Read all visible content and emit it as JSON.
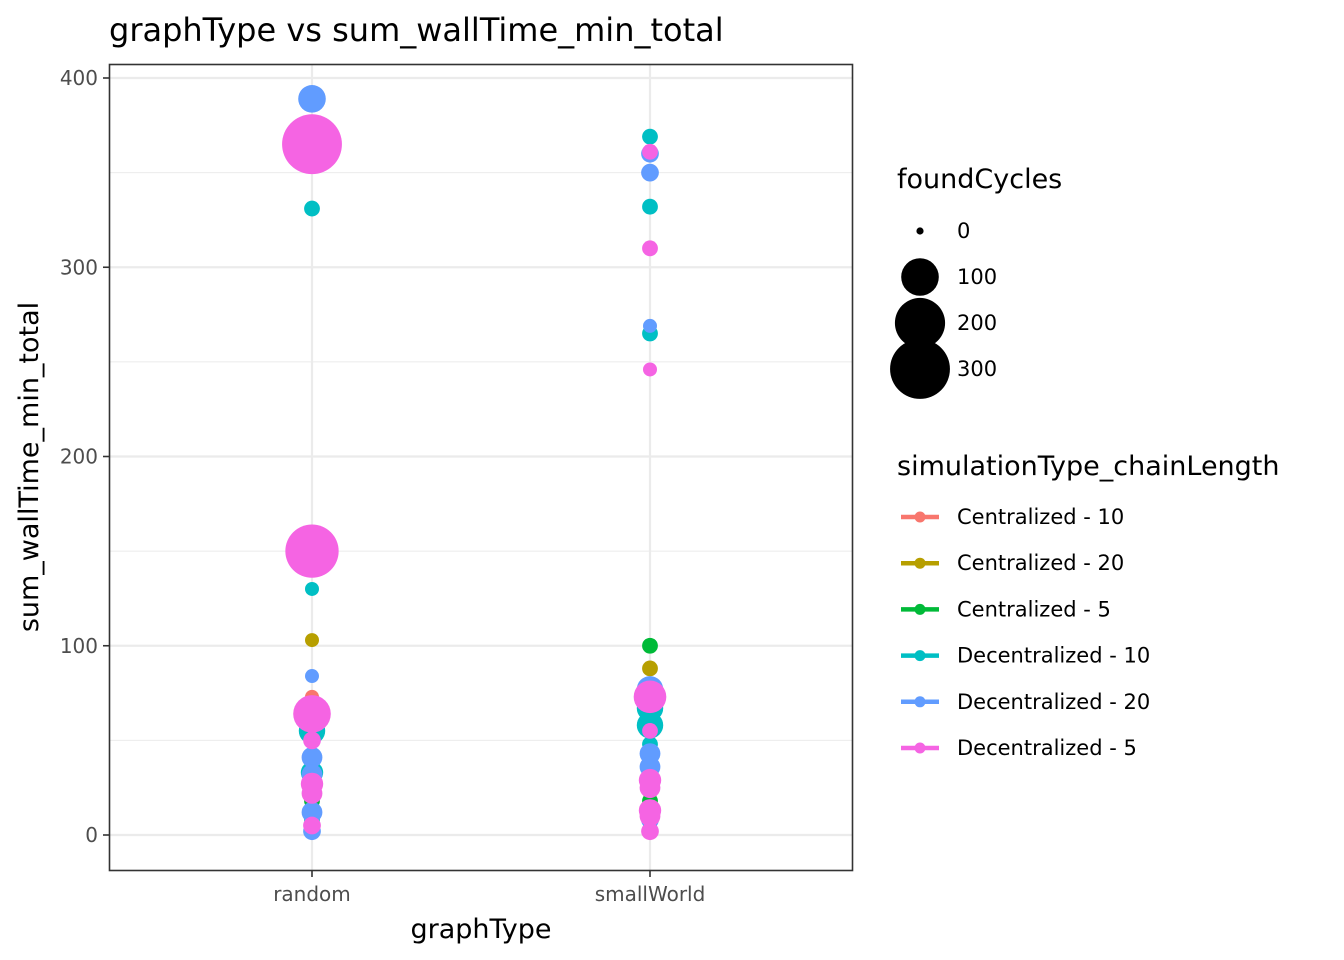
{
  "chart_data": {
    "type": "scatter",
    "title": "graphType  vs  sum_wallTime_min_total",
    "xlabel": "graphType",
    "ylabel": "sum_wallTime_min_total",
    "categories": [
      "random",
      "smallWorld"
    ],
    "ylim": [
      -19,
      400
    ],
    "yticks": [
      0,
      100,
      200,
      300,
      400
    ],
    "grid": true,
    "legend_placement": "right",
    "size_legend": {
      "title": "foundCycles",
      "values": [
        0,
        100,
        200,
        300
      ],
      "labels": [
        "0",
        "100",
        "200",
        "300"
      ]
    },
    "color_legend": {
      "title": "simulationType_chainLength",
      "entries": [
        {
          "label": "Centralized - 10",
          "color": "#F8766D"
        },
        {
          "label": "Centralized - 20",
          "color": "#B79F00"
        },
        {
          "label": "Centralized - 5",
          "color": "#00BA38"
        },
        {
          "label": "Decentralized - 10",
          "color": "#00BFC4"
        },
        {
          "label": "Decentralized - 20",
          "color": "#619CFF"
        },
        {
          "label": "Decentralized - 5",
          "color": "#F564E3"
        }
      ]
    },
    "series": [
      {
        "name": "Centralized - 10",
        "color": "#F8766D",
        "points": [
          {
            "x": "random",
            "y": 73,
            "size": 5
          },
          {
            "x": "random",
            "y": 65,
            "size": 5
          },
          {
            "x": "random",
            "y": 20,
            "size": 5
          },
          {
            "x": "random",
            "y": 5,
            "size": 5
          },
          {
            "x": "smallWorld",
            "y": 68,
            "size": 5
          },
          {
            "x": "smallWorld",
            "y": 15,
            "size": 5
          },
          {
            "x": "smallWorld",
            "y": 3,
            "size": 5
          }
        ]
      },
      {
        "name": "Centralized - 20",
        "color": "#B79F00",
        "points": [
          {
            "x": "random",
            "y": 103,
            "size": 5
          },
          {
            "x": "random",
            "y": 60,
            "size": 8
          },
          {
            "x": "random",
            "y": 22,
            "size": 5
          },
          {
            "x": "random",
            "y": 10,
            "size": 5
          },
          {
            "x": "smallWorld",
            "y": 88,
            "size": 8
          },
          {
            "x": "smallWorld",
            "y": 68,
            "size": 5
          },
          {
            "x": "smallWorld",
            "y": 22,
            "size": 5
          },
          {
            "x": "smallWorld",
            "y": 4,
            "size": 5
          }
        ]
      },
      {
        "name": "Centralized - 5",
        "color": "#00BA38",
        "points": [
          {
            "x": "random",
            "y": 18,
            "size": 8
          },
          {
            "x": "random",
            "y": 15,
            "size": 5
          },
          {
            "x": "random",
            "y": 5,
            "size": 5
          },
          {
            "x": "smallWorld",
            "y": 100,
            "size": 8
          },
          {
            "x": "smallWorld",
            "y": 65,
            "size": 12
          },
          {
            "x": "smallWorld",
            "y": 18,
            "size": 8
          },
          {
            "x": "smallWorld",
            "y": 5,
            "size": 5
          }
        ]
      },
      {
        "name": "Decentralized - 10",
        "color": "#00BFC4",
        "points": [
          {
            "x": "random",
            "y": 331,
            "size": 8
          },
          {
            "x": "random",
            "y": 130,
            "size": 5
          },
          {
            "x": "random",
            "y": 55,
            "size": 40
          },
          {
            "x": "random",
            "y": 33,
            "size": 25
          },
          {
            "x": "random",
            "y": 8,
            "size": 8
          },
          {
            "x": "smallWorld",
            "y": 369,
            "size": 8
          },
          {
            "x": "smallWorld",
            "y": 332,
            "size": 8
          },
          {
            "x": "smallWorld",
            "y": 265,
            "size": 8
          },
          {
            "x": "smallWorld",
            "y": 67,
            "size": 40
          },
          {
            "x": "smallWorld",
            "y": 58,
            "size": 40
          },
          {
            "x": "smallWorld",
            "y": 48,
            "size": 8
          },
          {
            "x": "smallWorld",
            "y": 30,
            "size": 12
          }
        ]
      },
      {
        "name": "Decentralized - 20",
        "color": "#619CFF",
        "points": [
          {
            "x": "random",
            "y": 389,
            "size": 45
          },
          {
            "x": "random",
            "y": 84,
            "size": 5
          },
          {
            "x": "random",
            "y": 67,
            "size": 8
          },
          {
            "x": "random",
            "y": 41,
            "size": 20
          },
          {
            "x": "random",
            "y": 32,
            "size": 20
          },
          {
            "x": "random",
            "y": 12,
            "size": 20
          },
          {
            "x": "random",
            "y": 2,
            "size": 12
          },
          {
            "x": "smallWorld",
            "y": 360,
            "size": 12
          },
          {
            "x": "smallWorld",
            "y": 350,
            "size": 12
          },
          {
            "x": "smallWorld",
            "y": 269,
            "size": 5
          },
          {
            "x": "smallWorld",
            "y": 77,
            "size": 40
          },
          {
            "x": "smallWorld",
            "y": 43,
            "size": 20
          },
          {
            "x": "smallWorld",
            "y": 36,
            "size": 20
          },
          {
            "x": "smallWorld",
            "y": 8,
            "size": 12
          }
        ]
      },
      {
        "name": "Decentralized - 5",
        "color": "#F564E3",
        "points": [
          {
            "x": "random",
            "y": 365,
            "size": 300
          },
          {
            "x": "random",
            "y": 150,
            "size": 230
          },
          {
            "x": "random",
            "y": 64,
            "size": 100
          },
          {
            "x": "random",
            "y": 50,
            "size": 12
          },
          {
            "x": "random",
            "y": 27,
            "size": 25
          },
          {
            "x": "random",
            "y": 22,
            "size": 20
          },
          {
            "x": "random",
            "y": 5,
            "size": 12
          },
          {
            "x": "smallWorld",
            "y": 361,
            "size": 8
          },
          {
            "x": "smallWorld",
            "y": 310,
            "size": 8
          },
          {
            "x": "smallWorld",
            "y": 246,
            "size": 5
          },
          {
            "x": "smallWorld",
            "y": 73,
            "size": 70
          },
          {
            "x": "smallWorld",
            "y": 55,
            "size": 8
          },
          {
            "x": "smallWorld",
            "y": 29,
            "size": 25
          },
          {
            "x": "smallWorld",
            "y": 25,
            "size": 20
          },
          {
            "x": "smallWorld",
            "y": 13,
            "size": 25
          },
          {
            "x": "smallWorld",
            "y": 10,
            "size": 20
          },
          {
            "x": "smallWorld",
            "y": 2,
            "size": 12
          }
        ]
      }
    ]
  }
}
